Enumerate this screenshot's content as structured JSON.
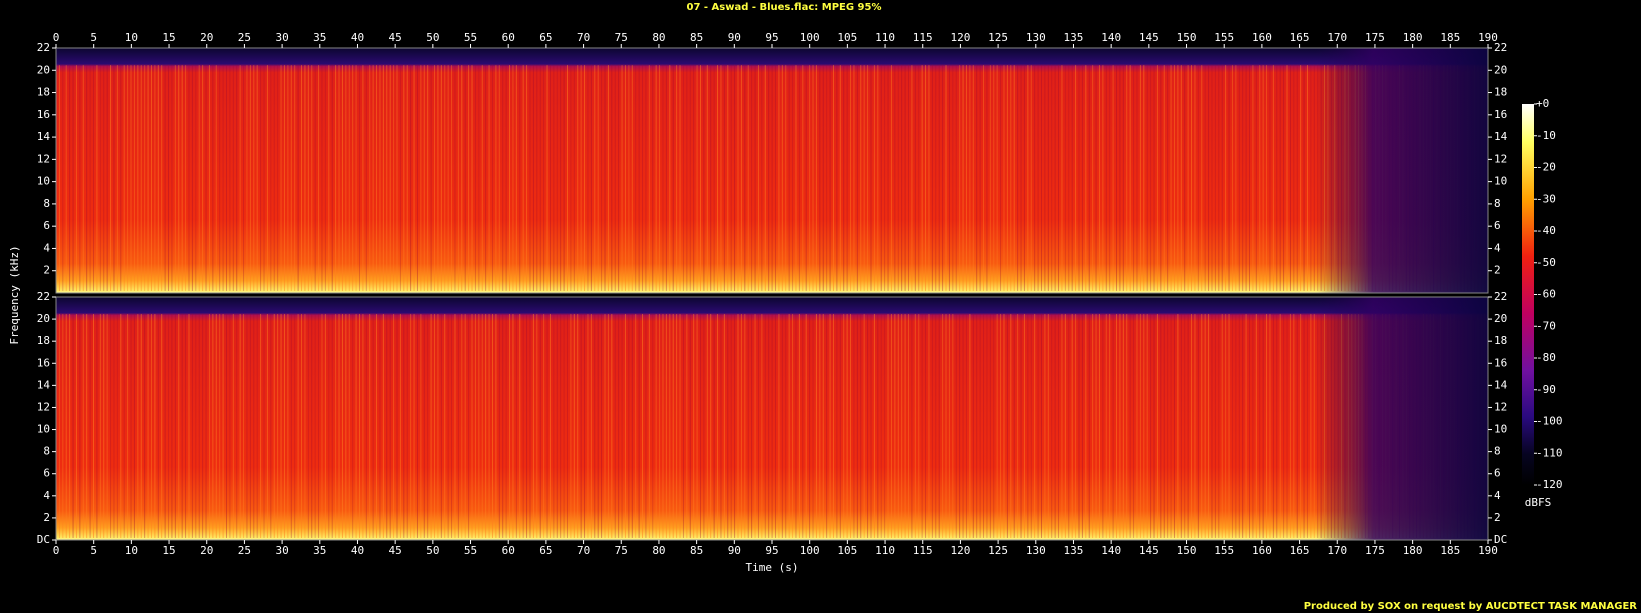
{
  "chart_data": {
    "type": "spectrogram",
    "title": "07 - Aswad - Blues.flac: MPEG 95%",
    "x_label": "Time (s)",
    "y_label": "Frequency (kHz)",
    "xlim": [
      0,
      190
    ],
    "xticks": [
      0,
      5,
      10,
      15,
      20,
      25,
      30,
      35,
      40,
      45,
      50,
      55,
      60,
      65,
      70,
      75,
      80,
      85,
      90,
      95,
      100,
      105,
      110,
      115,
      120,
      125,
      130,
      135,
      140,
      145,
      150,
      155,
      160,
      165,
      170,
      175,
      180,
      185,
      190
    ],
    "ylim": [
      0,
      22
    ],
    "yticks": [
      {
        "value": 0,
        "label": "DC"
      },
      2,
      4,
      6,
      8,
      10,
      12,
      14,
      16,
      18,
      20,
      22
    ],
    "colorbar": {
      "label": "dBFS",
      "lim": [
        -120,
        0
      ],
      "ticks": [
        {
          "value": 0,
          "label": "+0"
        },
        -10,
        -20,
        -30,
        -40,
        -50,
        -60,
        -70,
        -80,
        -90,
        -100,
        -110,
        -120
      ]
    },
    "footer": "Produced by SOX on request by AUCDTECT TASK MANAGER"
  }
}
